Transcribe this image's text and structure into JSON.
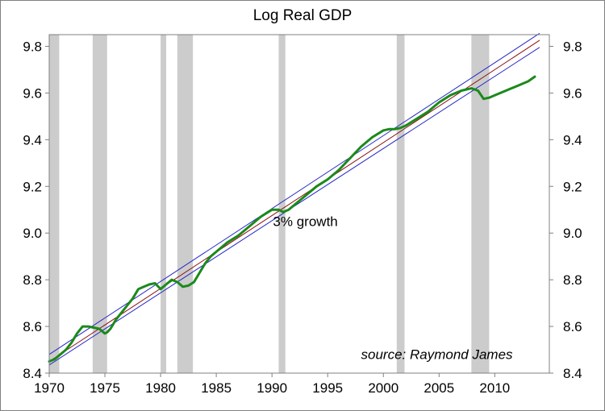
{
  "chart_data": {
    "type": "line",
    "title": "Log Real GDP",
    "xlabel": "",
    "ylabel": "",
    "xlim": [
      1970,
      2014.9
    ],
    "ylim": [
      8.4,
      9.85
    ],
    "x_ticks": [
      1970,
      1975,
      1980,
      1985,
      1990,
      1995,
      2000,
      2005,
      2010
    ],
    "y_ticks": [
      8.4,
      8.6,
      8.8,
      9.0,
      9.2,
      9.4,
      9.6,
      9.8
    ],
    "y_tick_labels": [
      "8.4",
      "8.6",
      "8.8",
      "9.0",
      "9.2",
      "9.4",
      "9.6",
      "9.8"
    ],
    "grid": false,
    "secondary_y_axis": true,
    "recessions": [
      [
        1970.0,
        1970.9
      ],
      [
        1973.9,
        1975.2
      ],
      [
        1980.0,
        1980.5
      ],
      [
        1981.5,
        1982.9
      ],
      [
        1990.6,
        1991.2
      ],
      [
        2001.2,
        2001.9
      ],
      [
        2007.9,
        2009.5
      ]
    ],
    "series": [
      {
        "role": "actual",
        "color": "#1a8a1a",
        "x": [
          1970.0,
          1970.5,
          1971.0,
          1971.5,
          1972.0,
          1972.5,
          1973.0,
          1973.5,
          1974.0,
          1974.5,
          1975.0,
          1975.2,
          1975.5,
          1976.0,
          1976.5,
          1977.0,
          1977.5,
          1978.0,
          1978.5,
          1979.0,
          1979.5,
          1980.0,
          1980.5,
          1981.0,
          1981.5,
          1982.0,
          1982.5,
          1983.0,
          1983.5,
          1984.0,
          1984.5,
          1985.0,
          1986.0,
          1987.0,
          1988.0,
          1989.0,
          1990.0,
          1990.6,
          1991.0,
          1991.5,
          1992.0,
          1993.0,
          1994.0,
          1995.0,
          1996.0,
          1997.0,
          1998.0,
          1999.0,
          2000.0,
          2000.5,
          2001.0,
          2001.5,
          2002.0,
          2003.0,
          2004.0,
          2005.0,
          2006.0,
          2007.0,
          2007.9,
          2008.5,
          2009.0,
          2009.5,
          2010.0,
          2011.0,
          2012.0,
          2013.0,
          2013.6
        ],
        "values": [
          8.45,
          8.46,
          8.48,
          8.5,
          8.53,
          8.57,
          8.6,
          8.6,
          8.595,
          8.59,
          8.57,
          8.575,
          8.59,
          8.63,
          8.66,
          8.69,
          8.72,
          8.76,
          8.77,
          8.78,
          8.785,
          8.76,
          8.78,
          8.8,
          8.79,
          8.77,
          8.775,
          8.79,
          8.83,
          8.87,
          8.9,
          8.92,
          8.96,
          8.99,
          9.03,
          9.07,
          9.1,
          9.1,
          9.09,
          9.1,
          9.12,
          9.16,
          9.2,
          9.23,
          9.27,
          9.32,
          9.37,
          9.41,
          9.44,
          9.445,
          9.445,
          9.45,
          9.46,
          9.49,
          9.52,
          9.56,
          9.59,
          9.61,
          9.62,
          9.61,
          9.575,
          9.58,
          9.59,
          9.61,
          9.63,
          9.65,
          9.67
        ]
      },
      {
        "role": "trend",
        "color": "#8b1010",
        "x": [
          1970.0,
          2014.0
        ],
        "values": [
          8.45,
          9.825
        ]
      },
      {
        "role": "upper band",
        "color": "#2828c8",
        "x": [
          1970.0,
          2014.0
        ],
        "values": [
          8.48,
          9.855
        ]
      },
      {
        "role": "lower band",
        "color": "#2828c8",
        "x": [
          1970.0,
          2014.0
        ],
        "values": [
          8.435,
          9.795
        ]
      }
    ],
    "annotations": [
      {
        "text": "3% growth",
        "x": 1993.0,
        "y": 9.03
      },
      {
        "text": "source: Raymond James",
        "x": 2004.8,
        "y": 8.46
      }
    ]
  }
}
